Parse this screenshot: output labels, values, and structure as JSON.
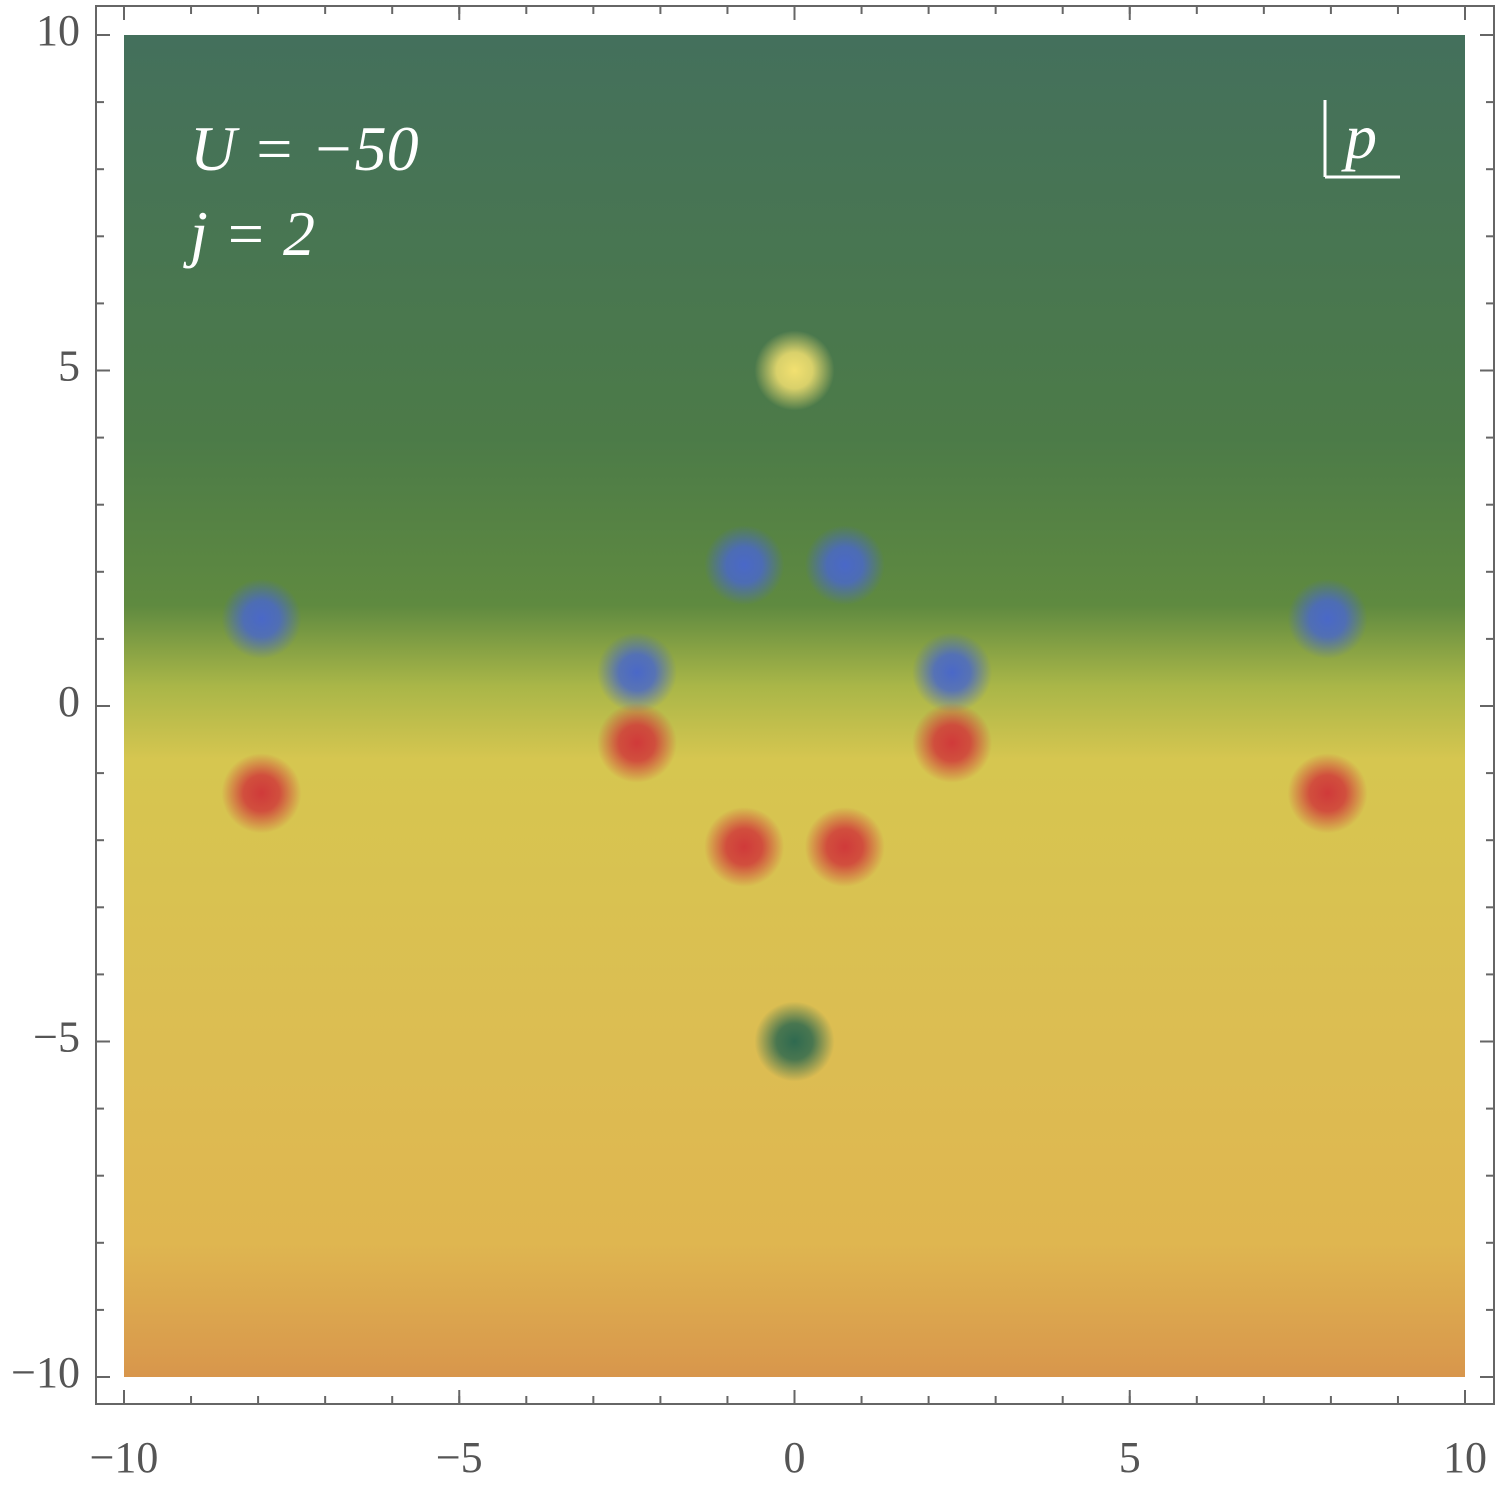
{
  "chart_data": {
    "type": "density",
    "annotations": [
      "U = −50",
      "j = 2"
    ],
    "corner_label": "p",
    "xlim": [
      -10,
      10
    ],
    "ylim": [
      -10,
      10
    ],
    "xticks": [
      {
        "value": -10,
        "label": "−10"
      },
      {
        "value": -5,
        "label": "−5"
      },
      0,
      5,
      10
    ],
    "yticks": [
      {
        "value": -10,
        "label": "−10"
      },
      {
        "value": -5,
        "label": "−5"
      },
      0,
      5,
      10
    ],
    "minor_tick_step": 1,
    "background": [
      {
        "y": 10,
        "color": "#44705c"
      },
      {
        "y": 4,
        "color": "#4c7b48"
      },
      {
        "y": 1.5,
        "color": "#5f8a40"
      },
      {
        "y": 0.3,
        "color": "#a9b648"
      },
      {
        "y": -0.8,
        "color": "#d6c650"
      },
      {
        "y": -5,
        "color": "#dcbd52"
      },
      {
        "y": -8,
        "color": "#dfb650"
      },
      {
        "y": -10,
        "color": "#d8964c"
      }
    ],
    "markers": {
      "x": [
        0,
        -0.75,
        0.75,
        -7.95,
        7.95,
        -2.35,
        2.35,
        -0.75,
        0.75,
        -7.95,
        7.95,
        -2.35,
        2.35,
        0
      ],
      "y": [
        5,
        2.1,
        2.1,
        1.3,
        1.3,
        0.5,
        0.5,
        -2.1,
        -2.1,
        -1.3,
        -1.3,
        -0.55,
        -0.55,
        -5
      ],
      "color": [
        "#f2e070",
        "#4a68c8",
        "#4a68c8",
        "#4a68c8",
        "#4a68c8",
        "#4a68c8",
        "#4a68c8",
        "#d03a3a",
        "#d03a3a",
        "#d03a3a",
        "#d03a3a",
        "#d03a3a",
        "#d03a3a",
        "#2f6a50"
      ]
    }
  }
}
